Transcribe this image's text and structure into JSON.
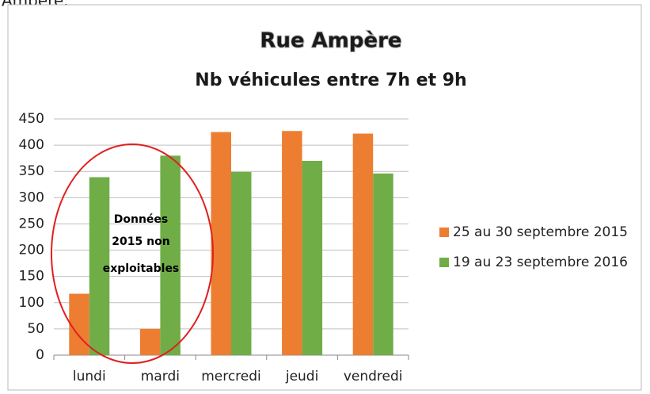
{
  "top_fragment": "Ampère.",
  "chart_data": {
    "type": "bar",
    "title": "Rue Ampère",
    "subtitle": "Nb véhicules entre 7h et 9h",
    "categories": [
      "lundi",
      "mardi",
      "mercredi",
      "jeudi",
      "vendredi"
    ],
    "series": [
      {
        "name": "25 au 30 septembre 2015",
        "color": "#ed7d31",
        "values": [
          117,
          50,
          425,
          427,
          422
        ]
      },
      {
        "name": "19 au 23 septembre 2016",
        "color": "#70ad47",
        "values": [
          339,
          380,
          349,
          370,
          346
        ]
      }
    ],
    "ylim": [
      0,
      450
    ],
    "yticks": [
      0,
      50,
      100,
      150,
      200,
      250,
      300,
      350,
      400,
      450
    ],
    "grid": true,
    "legend": "right",
    "annotation": [
      "Données",
      "2015 non",
      "exploitables"
    ]
  }
}
